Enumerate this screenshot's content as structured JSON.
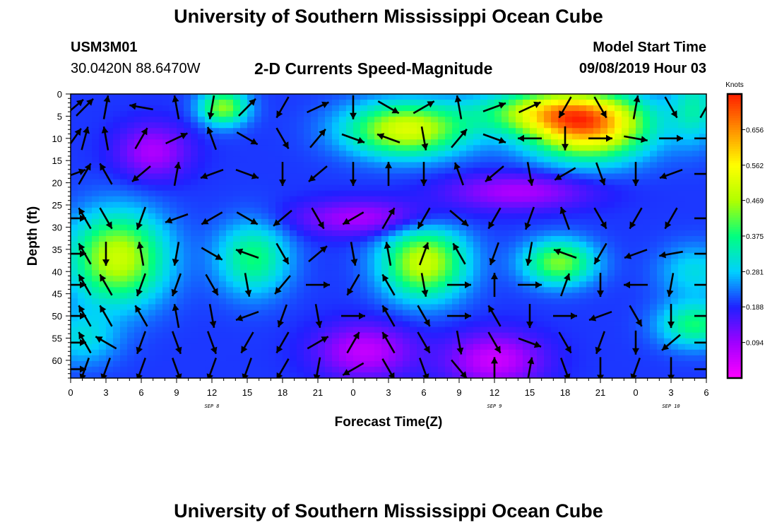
{
  "page": {
    "title": "University of Southern Mississippi Ocean Cube",
    "footer_title": "University of Southern Mississippi Ocean Cube",
    "station_id": "USM3M01",
    "station_location": "30.0420N 88.6470W",
    "plot_title": "2-D Currents Speed-Magnitude",
    "model_start_label": "Model Start Time",
    "model_start_value": "09/08/2019 Hour 03"
  },
  "chart_data": {
    "type": "heatmap",
    "title": "2-D Currents Speed-Magnitude",
    "xlabel": "Forecast Time(Z)",
    "ylabel": "Depth (ft)",
    "x_tick_labels": [
      "0",
      "3",
      "6",
      "9",
      "12",
      "15",
      "18",
      "21",
      "0",
      "3",
      "6",
      "9",
      "12",
      "15",
      "18",
      "21",
      "0",
      "3",
      "6"
    ],
    "x_hours": [
      0,
      3,
      6,
      9,
      12,
      15,
      18,
      21,
      24,
      27,
      30,
      33,
      36,
      39,
      42,
      45,
      48,
      51,
      54
    ],
    "day_labels": [
      {
        "label": "SEP 8",
        "hour": 12
      },
      {
        "label": "SEP 9",
        "hour": 36
      },
      {
        "label": "SEP 10",
        "hour": 51
      }
    ],
    "xlim": [
      0,
      54
    ],
    "y_ticks": [
      0,
      5,
      10,
      15,
      20,
      25,
      30,
      35,
      40,
      45,
      50,
      55,
      60
    ],
    "ylim": [
      0,
      64
    ],
    "y_inverted": true,
    "colorbar": {
      "unit": "Knots",
      "ticks": [
        "0.656",
        "0.562",
        "0.469",
        "0.375",
        "0.281",
        "0.188",
        "0.094"
      ],
      "tick_values": [
        0.656,
        0.562,
        0.469,
        0.375,
        0.281,
        0.188,
        0.094
      ],
      "range": [
        0,
        0.75
      ],
      "colors": [
        "#ff00ff",
        "#a000ff",
        "#2020ff",
        "#00d0ff",
        "#00ff80",
        "#b0ff00",
        "#ffff00",
        "#ff9000",
        "#ff2000"
      ]
    },
    "speed_blobs": [
      {
        "hour": 4,
        "depth": 37,
        "speed": 0.5,
        "sh": 4,
        "sd": 10
      },
      {
        "hour": 28.5,
        "depth": 8,
        "speed": 0.52,
        "sh": 5,
        "sd": 6
      },
      {
        "hour": 30,
        "depth": 38,
        "speed": 0.5,
        "sh": 3.5,
        "sd": 8
      },
      {
        "hour": 44,
        "depth": 8,
        "speed": 0.58,
        "sh": 5,
        "sd": 7
      },
      {
        "hour": 41,
        "depth": 4,
        "speed": 0.48,
        "sh": 6,
        "sd": 5
      },
      {
        "hour": 13,
        "depth": 3,
        "speed": 0.45,
        "sh": 2,
        "sd": 4
      },
      {
        "hour": 15.5,
        "depth": 37,
        "speed": 0.38,
        "sh": 3,
        "sd": 8
      },
      {
        "hour": 41.5,
        "depth": 38,
        "speed": 0.44,
        "sh": 3,
        "sd": 5
      },
      {
        "hour": 53,
        "depth": 52,
        "speed": 0.38,
        "sh": 3,
        "sd": 5
      },
      {
        "hour": 53,
        "depth": 40,
        "speed": 0.3,
        "sh": 3,
        "sd": 6
      },
      {
        "hour": 1,
        "depth": 55,
        "speed": 0.3,
        "sh": 3,
        "sd": 6
      },
      {
        "hour": 53,
        "depth": 3,
        "speed": 0.33,
        "sh": 2,
        "sd": 8
      },
      {
        "hour": 25,
        "depth": 58,
        "speed": 0.06,
        "sh": 4,
        "sd": 6
      },
      {
        "hour": 36,
        "depth": 60,
        "speed": 0.05,
        "sh": 4,
        "sd": 6
      },
      {
        "hour": 7,
        "depth": 13,
        "speed": 0.08,
        "sh": 3,
        "sd": 6
      },
      {
        "hour": 25,
        "depth": 28,
        "speed": 0.08,
        "sh": 6,
        "sd": 4
      },
      {
        "hour": 38,
        "depth": 22,
        "speed": 0.08,
        "sh": 6,
        "sd": 4
      }
    ],
    "vector_hours": [
      0.3,
      1.2,
      3,
      6,
      9,
      12,
      15,
      18,
      21,
      24,
      27,
      30,
      33,
      36,
      39,
      42,
      45,
      48,
      51,
      54
    ],
    "vector_depths": [
      3,
      10,
      18,
      28,
      36,
      43,
      50,
      56,
      62
    ],
    "vectors": [
      [
        40,
        45,
        80,
        170,
        100,
        260,
        45,
        240,
        25,
        -90,
        330,
        30,
        100,
        20,
        25,
        240,
        300,
        80,
        300,
        60
      ],
      [
        55,
        75,
        100,
        60,
        25,
        110,
        330,
        300,
        50,
        340,
        160,
        280,
        50,
        340,
        180,
        270,
        0,
        350,
        0,
        0
      ],
      [
        20,
        60,
        120,
        220,
        80,
        200,
        340,
        270,
        220,
        270,
        90,
        270,
        110,
        220,
        280,
        210,
        290,
        270,
        200,
        0
      ],
      [
        0,
        120,
        300,
        250,
        200,
        210,
        330,
        220,
        300,
        210,
        60,
        240,
        320,
        240,
        250,
        110,
        300,
        240,
        240,
        0
      ],
      [
        0,
        120,
        270,
        100,
        260,
        330,
        160,
        300,
        40,
        280,
        100,
        70,
        120,
        250,
        260,
        160,
        240,
        200,
        190,
        0
      ],
      [
        0,
        120,
        120,
        250,
        250,
        300,
        280,
        230,
        0,
        240,
        120,
        280,
        0,
        90,
        0,
        70,
        270,
        180,
        260,
        0
      ],
      [
        0,
        120,
        120,
        120,
        100,
        280,
        200,
        250,
        280,
        0,
        120,
        300,
        0,
        120,
        270,
        0,
        200,
        300,
        270,
        0
      ],
      [
        0,
        120,
        150,
        250,
        290,
        290,
        240,
        240,
        30,
        60,
        120,
        300,
        280,
        300,
        340,
        300,
        250,
        270,
        220,
        0
      ],
      [
        0,
        250,
        250,
        250,
        290,
        250,
        250,
        240,
        260,
        210,
        300,
        290,
        310,
        90,
        80,
        290,
        270,
        250,
        270,
        0
      ]
    ]
  }
}
